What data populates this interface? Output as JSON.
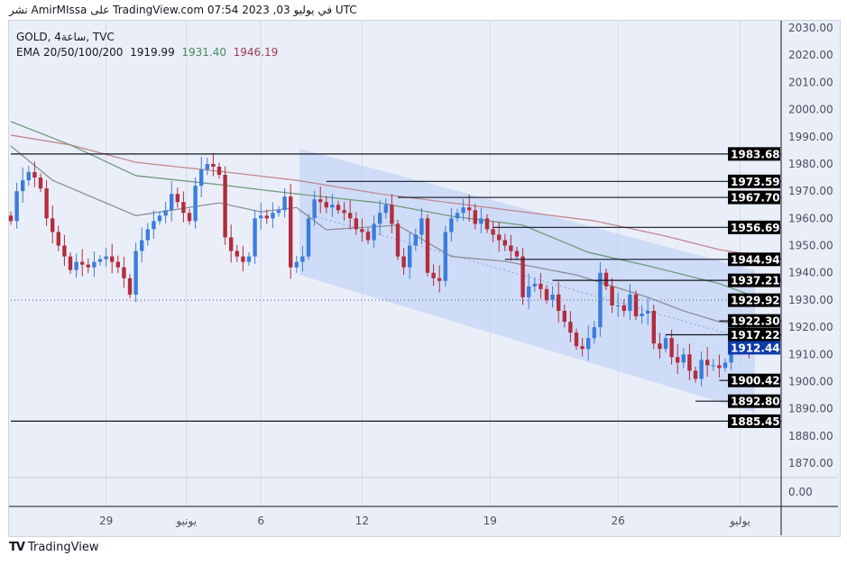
{
  "header": {
    "published": "نشر AmirMIssa على TradingView.com 07:54 2023 ,03 في يوليو UTC"
  },
  "legend": {
    "symbol": "GOLD, 4ساعة, TVC",
    "ema_label": "EMA 20/50/100/200",
    "ema1": "1919.99",
    "ema2": "1931.40",
    "ema3": "1946.19"
  },
  "footer": {
    "brand": "TradingView",
    "logo": "17"
  },
  "colors": {
    "up": "#3b7ddd",
    "down": "#b22d3d",
    "ema20": "#8a8f98",
    "ema50": "#6f9a7c",
    "ema100": "#c08a93",
    "channel": "#b8cdf5",
    "last": "#0f3aa8"
  },
  "chart_data": {
    "type": "candlestick",
    "symbol": "GOLD",
    "timeframe": "4H",
    "exchange": "TVC",
    "ylim": [
      1863,
      2033
    ],
    "y_ticks": [
      "2030.00",
      "2020.00",
      "2010.00",
      "2000.00",
      "1990.00",
      "1980.00",
      "1970.00",
      "1960.00",
      "1950.00",
      "1940.00",
      "1930.00",
      "1920.00",
      "1910.00",
      "1900.00",
      "1890.00",
      "1880.00",
      "1870.00"
    ],
    "lower_pane_tick": "0.00",
    "x_ticks": [
      {
        "label": "29",
        "idx": 16
      },
      {
        "label": "يونيو",
        "idx": 29.5
      },
      {
        "label": "6",
        "idx": 42
      },
      {
        "label": "12",
        "idx": 59
      },
      {
        "label": "19",
        "idx": 80.5
      },
      {
        "label": "26",
        "idx": 102
      },
      {
        "label": "يوليو",
        "idx": 122.5
      }
    ],
    "closes": [
      1959,
      1970,
      1974,
      1977,
      1975,
      1971,
      1960,
      1955,
      1950,
      1946,
      1941,
      1944,
      1943,
      1942,
      1944,
      1945,
      1946,
      1944,
      1942,
      1938,
      1932,
      1948,
      1952,
      1956,
      1959,
      1961,
      1963,
      1969,
      1966,
      1962,
      1959,
      1972,
      1978,
      1980,
      1979,
      1976,
      1953,
      1948,
      1946,
      1944,
      1946,
      1960,
      1961,
      1960,
      1962,
      1963,
      1968,
      1942,
      1944,
      1946,
      1960,
      1967,
      1966,
      1964,
      1965,
      1963,
      1962,
      1960,
      1956,
      1955,
      1952,
      1958,
      1962,
      1965,
      1958,
      1946,
      1942,
      1950,
      1954,
      1960,
      1940,
      1938,
      1937,
      1955,
      1960,
      1962,
      1964,
      1963,
      1958,
      1960,
      1956,
      1954,
      1952,
      1950,
      1948,
      1946,
      1931,
      1935,
      1936,
      1934,
      1930,
      1932,
      1926,
      1922,
      1918,
      1913,
      1912,
      1916,
      1920,
      1940,
      1935,
      1928,
      1928,
      1926,
      1932,
      1924,
      1925,
      1926,
      1914,
      1912,
      1916,
      1909,
      1907,
      1910,
      1904,
      1901,
      1908,
      1906,
      1906,
      1905,
      1907,
      1917,
      1920,
      1919,
      1912
    ],
    "ema20": [
      [
        0,
        1986.6
      ],
      [
        7,
        1974
      ],
      [
        21,
        1961
      ],
      [
        35,
        1965.7
      ],
      [
        42,
        1962.4
      ],
      [
        48,
        1964
      ],
      [
        53,
        1955.8
      ],
      [
        65,
        1957.5
      ],
      [
        74,
        1946
      ],
      [
        83,
        1944.2
      ],
      [
        95,
        1939.2
      ],
      [
        107,
        1931
      ],
      [
        113,
        1926
      ],
      [
        119,
        1922
      ],
      [
        124,
        1921
      ]
    ],
    "ema50": [
      [
        0,
        1995.6
      ],
      [
        10,
        1987
      ],
      [
        21,
        1975.7
      ],
      [
        35,
        1972.4
      ],
      [
        44,
        1970
      ],
      [
        48,
        1969
      ],
      [
        62,
        1965.7
      ],
      [
        74,
        1960.8
      ],
      [
        86,
        1957.5
      ],
      [
        97,
        1947.5
      ],
      [
        107,
        1942.6
      ],
      [
        119,
        1936
      ],
      [
        124,
        1932
      ]
    ],
    "ema100": [
      [
        0,
        1990.6
      ],
      [
        10,
        1987
      ],
      [
        21,
        1980.6
      ],
      [
        35,
        1977.3
      ],
      [
        48,
        1974
      ],
      [
        62,
        1969
      ],
      [
        74,
        1965.7
      ],
      [
        86,
        1962.4
      ],
      [
        98,
        1959.1
      ],
      [
        110,
        1953.5
      ],
      [
        119,
        1948.5
      ],
      [
        124,
        1946.8
      ]
    ],
    "channel": {
      "start_idx": 48.5,
      "end_idx": 125,
      "top": [
        1985.6,
        1940.9
      ],
      "bottom": [
        1939.2,
        1888.6
      ]
    },
    "levels": [
      {
        "price": "1983.68",
        "from_idx": 0,
        "style": "solid"
      },
      {
        "price": "1973.59",
        "from_idx": 53,
        "style": "solid"
      },
      {
        "price": "1967.70",
        "from_idx": 65,
        "style": "solid"
      },
      {
        "price": "1956.69",
        "from_idx": 81,
        "style": "solid"
      },
      {
        "price": "1944.94",
        "from_idx": 83,
        "style": "solid"
      },
      {
        "price": "1937.21",
        "from_idx": 91,
        "style": "solid"
      },
      {
        "price": "1929.92",
        "from_idx": 0,
        "style": "dotted"
      },
      {
        "price": "1922.30",
        "from_idx": 119,
        "style": "solid"
      },
      {
        "price": "1917.22",
        "from_idx": 110,
        "style": "solid"
      },
      {
        "price": "1900.42",
        "from_idx": 119,
        "style": "solid"
      },
      {
        "price": "1892.80",
        "from_idx": 115,
        "style": "solid"
      },
      {
        "price": "1885.45",
        "from_idx": 0,
        "style": "solid"
      }
    ],
    "last_price": "1912.44"
  }
}
